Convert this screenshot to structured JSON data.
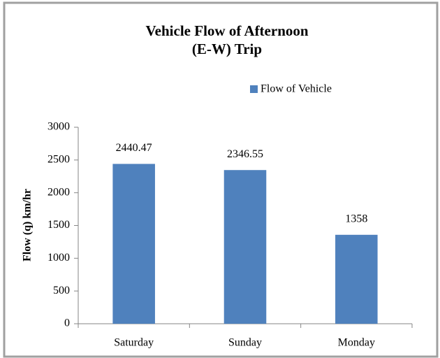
{
  "chart_data": {
    "type": "bar",
    "title": [
      "Vehicle Flow of Afternoon",
      "(E-W) Trip"
    ],
    "ylabel": "Flow  (q)  km/hr",
    "categories": [
      "Saturday",
      "Sunday",
      "Monday"
    ],
    "series": [
      {
        "name": "Flow of Vehicle",
        "color": "#4f81bd",
        "values": [
          2440.47,
          2346.55,
          1358
        ]
      }
    ],
    "ylim": [
      0,
      3000
    ],
    "yticks": [
      0,
      500,
      1000,
      1500,
      2000,
      2500,
      3000
    ],
    "legend": "top",
    "grid": false
  }
}
